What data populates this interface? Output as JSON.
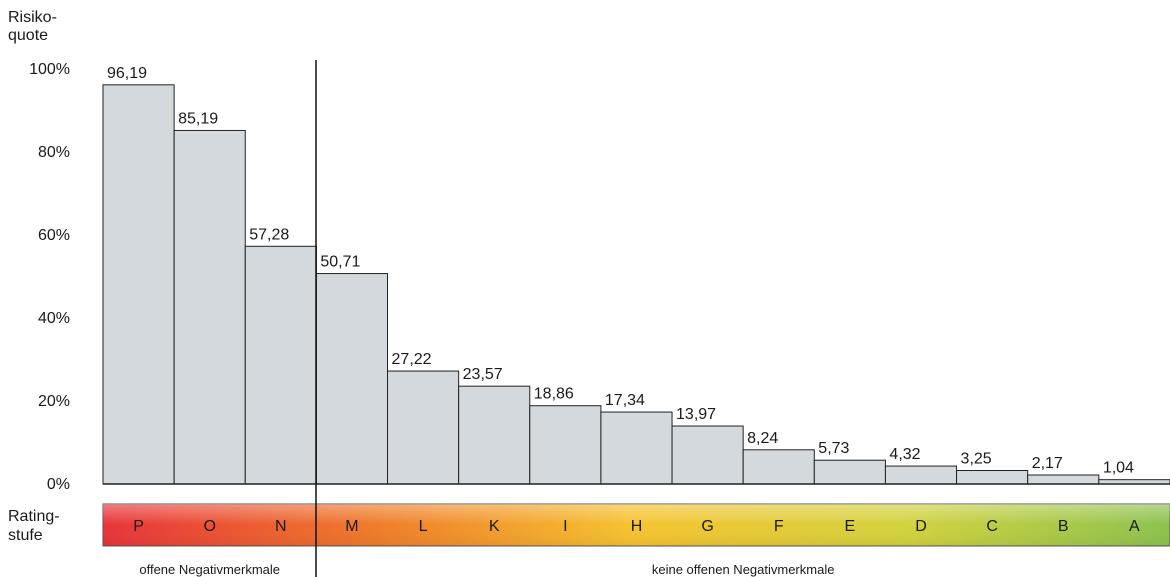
{
  "chart_data": {
    "type": "bar",
    "ylabel": [
      "Risiko-",
      "quote"
    ],
    "yticks": [
      "0%",
      "20%",
      "40%",
      "60%",
      "80%",
      "100%"
    ],
    "ylim": [
      0,
      100
    ],
    "categories": [
      "P",
      "O",
      "N",
      "M",
      "L",
      "K",
      "I",
      "H",
      "G",
      "F",
      "E",
      "D",
      "C",
      "B",
      "A"
    ],
    "values": [
      96.19,
      85.19,
      57.28,
      50.71,
      27.22,
      23.57,
      18.86,
      17.34,
      13.97,
      8.24,
      5.73,
      4.32,
      3.25,
      2.17,
      1.04
    ],
    "value_labels": [
      "96,19",
      "85,19",
      "57,28",
      "50,71",
      "27,22",
      "23,57",
      "18,86",
      "17,34",
      "13,97",
      "8,24",
      "5,73",
      "4,32",
      "3,25",
      "2,17",
      "1,04"
    ],
    "bar_color": "#d3d9dc",
    "bar_edge_color": "#222222",
    "xlabel": [
      "Rating-",
      "stufe"
    ],
    "rating_gradient": [
      "#e8333a",
      "#ef7a2a",
      "#f6c330",
      "#d3d23e",
      "#8cc24e"
    ],
    "groups": [
      {
        "label": "offene Negativmerkmale",
        "categories": [
          "P",
          "O",
          "N"
        ]
      },
      {
        "label": "keine offenen Negativmerkmale",
        "categories": [
          "M",
          "L",
          "K",
          "I",
          "H",
          "G",
          "F",
          "E",
          "D",
          "C",
          "B",
          "A"
        ]
      }
    ],
    "divider_after": "N",
    "grid": false
  }
}
